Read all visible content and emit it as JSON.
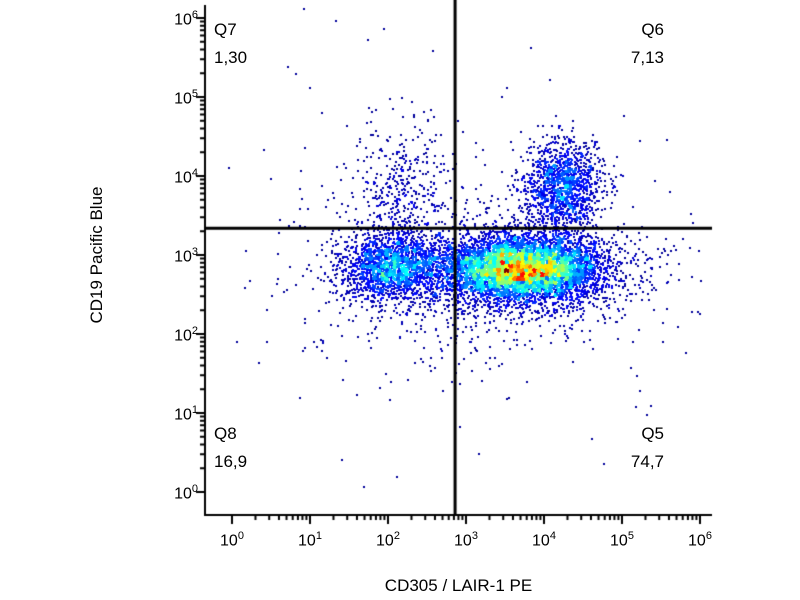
{
  "chart_data": {
    "type": "scatter",
    "subtype": "flow-cytometry-density-dot-plot",
    "title": "",
    "xlabel": "CD305 / LAIR-1 PE",
    "ylabel": "CD19 Pacific Blue",
    "x_scale": "log10",
    "y_scale": "log10",
    "tick_base": "10",
    "x_ticks": [
      0,
      1,
      2,
      3,
      4,
      5,
      6
    ],
    "y_ticks": [
      0,
      1,
      2,
      3,
      4,
      5,
      6
    ],
    "xlim_log10": [
      -0.35,
      6.15
    ],
    "ylim_log10": [
      -0.29,
      6.16
    ],
    "grid": "off",
    "legend": "none",
    "quadrant_gate": {
      "x_log10": 2.86,
      "y_log10": 3.34
    },
    "quadrants": [
      {
        "name": "Q7",
        "value": "1,30",
        "position": "top-left"
      },
      {
        "name": "Q6",
        "value": "7,13",
        "position": "top-right"
      },
      {
        "name": "Q8",
        "value": "16,9",
        "position": "bottom-left"
      },
      {
        "name": "Q5",
        "value": "74,7",
        "position": "bottom-right"
      }
    ],
    "point_color_low_density": "#0000a0",
    "point_color_high_density": "#d00000",
    "populations": [
      {
        "name": "lair1-bright-cd19-neg-core",
        "cx": 3.72,
        "cy": 2.82,
        "sx": 0.5,
        "sy": 0.2,
        "n": 6000
      },
      {
        "name": "lair1-bright-cd19-neg-halo",
        "cx": 3.6,
        "cy": 2.82,
        "sx": 0.85,
        "sy": 0.38,
        "n": 1200
      },
      {
        "name": "lair1-dim-cd19-neg",
        "cx": 2.05,
        "cy": 2.84,
        "sx": 0.33,
        "sy": 0.22,
        "n": 1800
      },
      {
        "name": "lair1-pos-cd19-pos",
        "cx": 4.25,
        "cy": 3.88,
        "sx": 0.24,
        "sy": 0.28,
        "n": 1300
      },
      {
        "name": "lair1-dim-cd19-pos",
        "cx": 2.2,
        "cy": 3.85,
        "sx": 0.3,
        "sy": 0.42,
        "n": 320
      },
      {
        "name": "background-scatter",
        "cx": 3.0,
        "cy": 2.9,
        "sx": 1.3,
        "sy": 0.8,
        "n": 550
      },
      {
        "name": "sparse-outliers",
        "cx": 3.0,
        "cy": 3.2,
        "sx": 1.8,
        "sy": 1.5,
        "n": 90
      }
    ]
  }
}
